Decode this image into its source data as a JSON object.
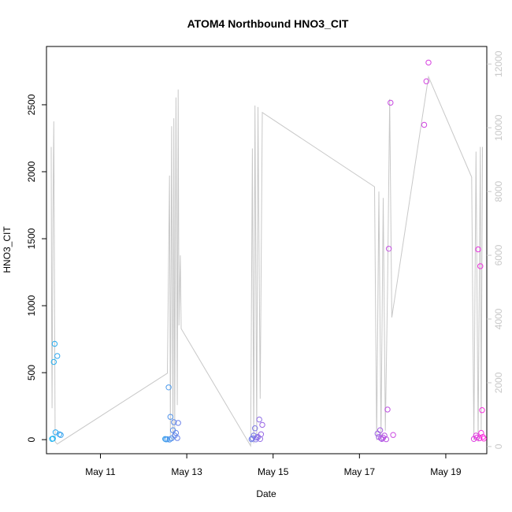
{
  "chart_data": {
    "type": "scatter",
    "title": "ATOM4 Northbound HNO3_CIT",
    "xlabel": "Date",
    "ylabel": "HNO3_CIT",
    "xlim": [
      9.75,
      19.95
    ],
    "ylim": [
      -105,
      2935
    ],
    "y2lim": [
      -225,
      12550
    ],
    "x_ticks": [
      11,
      13,
      15,
      17,
      19
    ],
    "x_tick_labels": [
      "May 11",
      "May 13",
      "May 15",
      "May 17",
      "May 19"
    ],
    "y_ticks": [
      0,
      500,
      1000,
      1500,
      2000,
      2500
    ],
    "y2_ticks": [
      0,
      2000,
      4000,
      6000,
      8000,
      10000,
      12000
    ],
    "grid": false,
    "secondary_series": {
      "axis": "right",
      "color": "#c8c8c8",
      "points": [
        [
          9.86,
          9400
        ],
        [
          9.87,
          3500
        ],
        [
          9.88,
          1200
        ],
        [
          9.9,
          7100
        ],
        [
          9.92,
          10200
        ],
        [
          9.95,
          150
        ],
        [
          10.0,
          80
        ],
        [
          12.55,
          2300
        ],
        [
          12.6,
          8500
        ],
        [
          12.62,
          350
        ],
        [
          12.65,
          10050
        ],
        [
          12.68,
          200
        ],
        [
          12.7,
          10300
        ],
        [
          12.72,
          500
        ],
        [
          12.75,
          10950
        ],
        [
          12.78,
          1300
        ],
        [
          12.8,
          11200
        ],
        [
          12.82,
          3800
        ],
        [
          12.85,
          6000
        ],
        [
          12.87,
          3700
        ],
        [
          14.48,
          20
        ],
        [
          14.52,
          9350
        ],
        [
          14.55,
          100
        ],
        [
          14.58,
          10700
        ],
        [
          14.62,
          300
        ],
        [
          14.65,
          10650
        ],
        [
          14.7,
          1500
        ],
        [
          14.75,
          10480
        ],
        [
          17.35,
          8150
        ],
        [
          17.4,
          200
        ],
        [
          17.45,
          8000
        ],
        [
          17.5,
          300
        ],
        [
          17.55,
          7800
        ],
        [
          17.6,
          500
        ],
        [
          17.65,
          4950
        ],
        [
          17.7,
          10900
        ],
        [
          17.75,
          4050
        ],
        [
          18.6,
          11600
        ],
        [
          19.6,
          8450
        ],
        [
          19.65,
          200
        ],
        [
          19.7,
          9250
        ],
        [
          19.75,
          150
        ],
        [
          19.8,
          9400
        ],
        [
          19.82,
          500
        ],
        [
          19.85,
          9400
        ]
      ]
    },
    "series": [
      {
        "color_start": "#1eb4f0",
        "color_end": "#ff28dc",
        "points": [
          [
            9.88,
            5
          ],
          [
            9.9,
            8
          ],
          [
            9.92,
            580
          ],
          [
            9.94,
            715
          ],
          [
            9.96,
            55
          ],
          [
            10.0,
            625
          ],
          [
            10.05,
            40
          ],
          [
            10.08,
            35
          ],
          [
            12.5,
            5
          ],
          [
            12.52,
            2
          ],
          [
            12.55,
            3
          ],
          [
            12.58,
            390
          ],
          [
            12.6,
            1
          ],
          [
            12.62,
            170
          ],
          [
            12.65,
            10
          ],
          [
            12.68,
            70
          ],
          [
            12.7,
            130
          ],
          [
            12.72,
            30
          ],
          [
            12.75,
            50
          ],
          [
            12.78,
            12
          ],
          [
            12.8,
            125
          ],
          [
            14.5,
            3
          ],
          [
            14.52,
            10
          ],
          [
            14.55,
            30
          ],
          [
            14.58,
            85
          ],
          [
            14.6,
            2
          ],
          [
            14.62,
            15
          ],
          [
            14.65,
            20
          ],
          [
            14.68,
            150
          ],
          [
            14.7,
            5
          ],
          [
            14.72,
            40
          ],
          [
            14.75,
            110
          ],
          [
            17.42,
            45
          ],
          [
            17.45,
            20
          ],
          [
            17.48,
            70
          ],
          [
            17.5,
            10
          ],
          [
            17.52,
            5
          ],
          [
            17.55,
            15
          ],
          [
            17.58,
            30
          ],
          [
            17.62,
            3
          ],
          [
            17.65,
            225
          ],
          [
            17.68,
            1425
          ],
          [
            17.72,
            2515
          ],
          [
            17.78,
            35
          ],
          [
            18.5,
            2350
          ],
          [
            18.55,
            2675
          ],
          [
            18.6,
            2815
          ],
          [
            19.65,
            5
          ],
          [
            19.7,
            30
          ],
          [
            19.72,
            15
          ],
          [
            19.75,
            1420
          ],
          [
            19.78,
            10
          ],
          [
            19.8,
            1295
          ],
          [
            19.82,
            50
          ],
          [
            19.84,
            220
          ],
          [
            19.86,
            20
          ],
          [
            19.88,
            8
          ]
        ]
      }
    ]
  }
}
